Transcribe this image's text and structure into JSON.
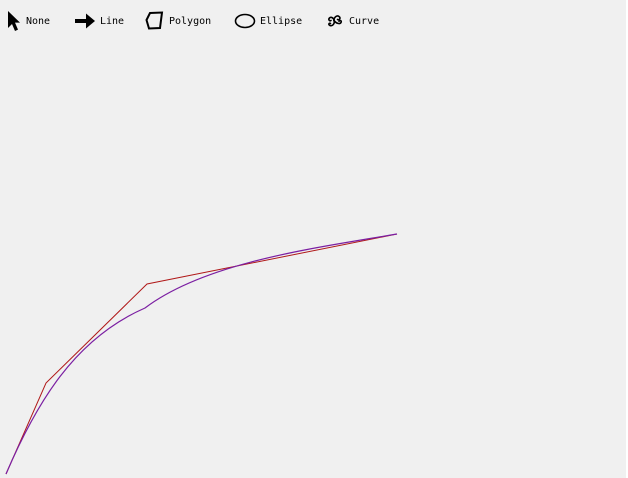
{
  "toolbar": {
    "tools": [
      {
        "label": "None",
        "icon": "pointer-arrow-icon"
      },
      {
        "label": "Line",
        "icon": "right-arrow-icon"
      },
      {
        "label": "Polygon",
        "icon": "polygon-icon"
      },
      {
        "label": "Ellipse",
        "icon": "ellipse-icon"
      },
      {
        "label": "Curve",
        "icon": "spiral-curve-icon"
      }
    ]
  },
  "colors": {
    "background": "#f0f0f0",
    "control_polygon": "#b01818",
    "curve": "#7b1fa2"
  }
}
